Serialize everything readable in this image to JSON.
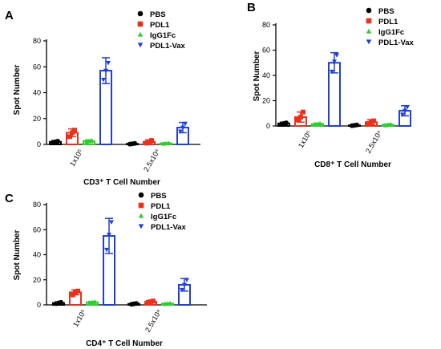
{
  "chart_data": [
    {
      "panel": "A",
      "type": "bar",
      "categories": [
        "1x10⁵",
        "2.5x10⁴"
      ],
      "xlabel": "CD3⁺ T Cell Number",
      "ylabel": "Spot Number",
      "ylim": [
        0,
        80
      ],
      "yticks": [
        0,
        20,
        40,
        60,
        80
      ],
      "legend": "top-right",
      "series": [
        {
          "name": "PBS",
          "values": [
            2,
            0.5
          ],
          "err": [
            1,
            0.4
          ],
          "points": [
            [
              1.5,
              2,
              2.5
            ],
            [
              0.2,
              0.5,
              0.8
            ]
          ]
        },
        {
          "name": "PDL1",
          "values": [
            9,
            2
          ],
          "err": [
            3,
            1.5
          ],
          "points": [
            [
              6,
              9,
              11
            ],
            [
              1,
              2,
              3
            ]
          ]
        },
        {
          "name": "IgG1Fc",
          "values": [
            2.5,
            0.8
          ],
          "err": [
            1,
            0.5
          ],
          "points": [
            [
              2,
              2.5,
              3
            ],
            [
              0.5,
              0.8,
              1.1
            ]
          ]
        },
        {
          "name": "PDL1-Vax",
          "values": [
            57,
            13
          ],
          "err": [
            10,
            4
          ],
          "points": [
            [
              50,
              57,
              63
            ],
            [
              10,
              13,
              16
            ]
          ]
        }
      ]
    },
    {
      "panel": "B",
      "type": "bar",
      "categories": [
        "1x10⁵",
        "2.5x10⁴"
      ],
      "xlabel": "CD8⁺ T Cell Number",
      "ylabel": "Spot Number",
      "ylim": [
        0,
        80
      ],
      "yticks": [
        0,
        20,
        40,
        60,
        80
      ],
      "legend": "top-right",
      "series": [
        {
          "name": "PBS",
          "values": [
            2,
            0.5
          ],
          "err": [
            1,
            0.4
          ],
          "points": [
            [
              1.5,
              2,
              2.5
            ],
            [
              0.2,
              0.5,
              0.8
            ]
          ]
        },
        {
          "name": "PDL1",
          "values": [
            7,
            3
          ],
          "err": [
            4,
            2
          ],
          "points": [
            [
              5,
              7,
              11
            ],
            [
              2,
              3,
              4
            ]
          ]
        },
        {
          "name": "IgG1Fc",
          "values": [
            1.5,
            1
          ],
          "err": [
            0.8,
            0.5
          ],
          "points": [
            [
              1,
              1.5,
              2
            ],
            [
              0.5,
              1,
              1.4
            ]
          ]
        },
        {
          "name": "PDL1-Vax",
          "values": [
            50,
            12
          ],
          "err": [
            8,
            4
          ],
          "points": [
            [
              43,
              51,
              56
            ],
            [
              9,
              12,
              15
            ]
          ]
        }
      ]
    },
    {
      "panel": "C",
      "type": "bar",
      "categories": [
        "1x10⁵",
        "2.5x10⁴"
      ],
      "xlabel": "CD4⁺ T Cell Number",
      "ylabel": "Spot Number",
      "ylim": [
        0,
        80
      ],
      "yticks": [
        0,
        20,
        40,
        60,
        80
      ],
      "legend": "top-right",
      "series": [
        {
          "name": "PBS",
          "values": [
            1.5,
            0.8
          ],
          "err": [
            0.8,
            0.4
          ],
          "points": [
            [
              1,
              1.5,
              2
            ],
            [
              0.5,
              0.8,
              1.1
            ]
          ]
        },
        {
          "name": "PDL1",
          "values": [
            10,
            2.5
          ],
          "err": [
            2,
            1
          ],
          "points": [
            [
              8,
              10,
              11
            ],
            [
              2,
              2.5,
              3
            ]
          ]
        },
        {
          "name": "IgG1Fc",
          "values": [
            2,
            1
          ],
          "err": [
            0.8,
            0.5
          ],
          "points": [
            [
              1.5,
              2,
              2.5
            ],
            [
              0.6,
              1,
              1.3
            ]
          ]
        },
        {
          "name": "PDL1-Vax",
          "values": [
            55,
            16
          ],
          "err": [
            14,
            5
          ],
          "points": [
            [
              44,
              56,
              66
            ],
            [
              12,
              16,
              20
            ]
          ]
        }
      ]
    }
  ],
  "colors": {
    "PBS": "#000000",
    "PDL1": "#e8321c",
    "IgG1Fc": "#2fcc2f",
    "PDL1-Vax": "#1f3fd6"
  },
  "markers": {
    "PBS": "circle",
    "PDL1": "square",
    "IgG1Fc": "triangle-up",
    "PDL1-Vax": "triangle-down"
  }
}
